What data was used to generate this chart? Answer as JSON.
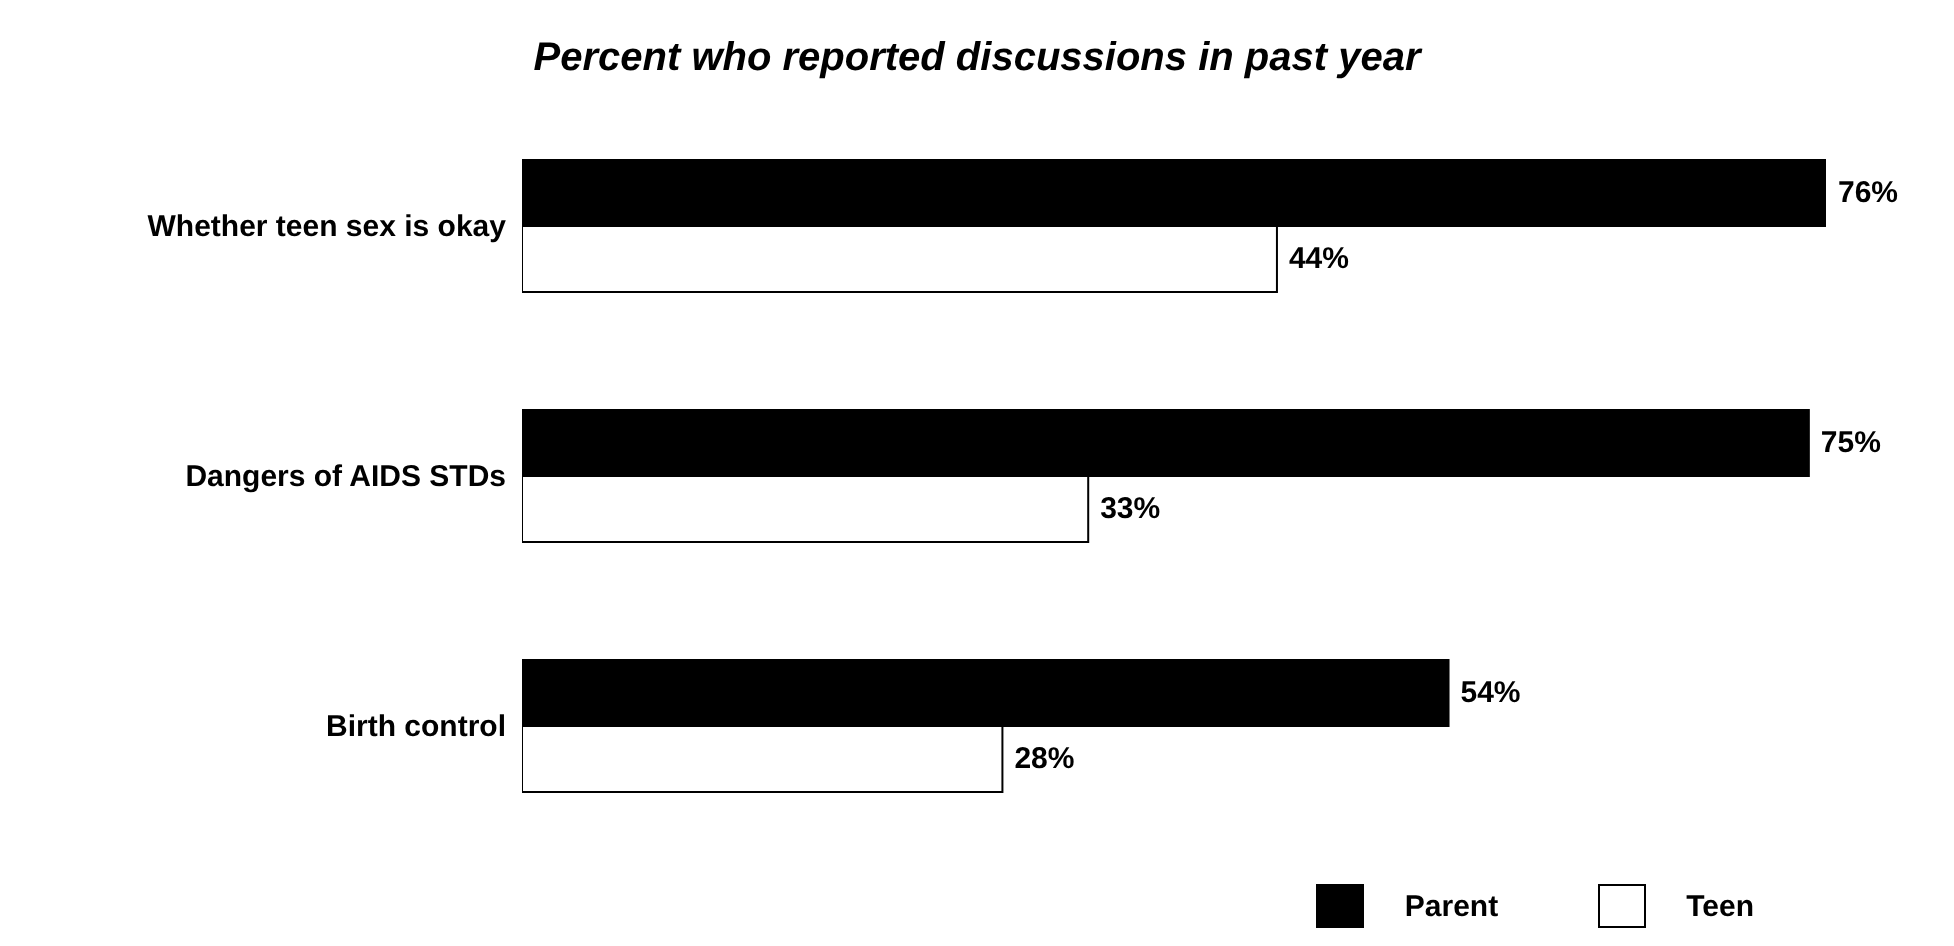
{
  "chart_data": {
    "type": "bar",
    "orientation": "horizontal",
    "title": "Percent who reported discussions in past year",
    "categories": [
      "Whether teen sex is okay",
      "Dangers of AIDS STDs",
      "Birth control"
    ],
    "series": [
      {
        "name": "Parent",
        "color": "#000000",
        "values": [
          76,
          75,
          54
        ],
        "value_labels": [
          "76%",
          "75%",
          "54%"
        ]
      },
      {
        "name": "Teen",
        "color": "#ffffff",
        "values": [
          44,
          33,
          28
        ],
        "value_labels": [
          "44%",
          "33%",
          "28%"
        ]
      }
    ],
    "legend": "bottom right"
  }
}
